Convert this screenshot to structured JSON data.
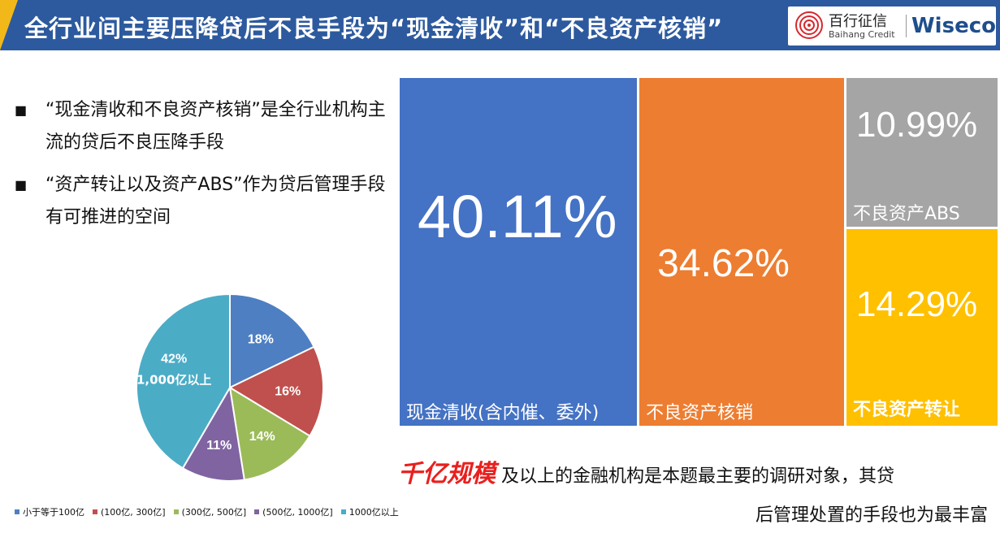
{
  "header": {
    "title": "全行业间主要压降贷后不良手段为“现金清收”和“不良资产核销”",
    "logo_cn": "百行征信",
    "logo_en": "Baihang Credit",
    "logo_brand": "Wiseco",
    "bg_color": "#2d5a9e"
  },
  "bullets": [
    {
      "icon": "■",
      "text": "“现金清收和不良资产核销”是全行业机构主流的贷后不良压降手段"
    },
    {
      "icon": "■",
      "text": "“资产转让以及资产ABS”作为贷后管理手段有可推进的空间"
    }
  ],
  "bottom_text": {
    "highlight": "千亿规模",
    "line1": "及以上的金融机构是本题最主要的调研对象，其贷",
    "line2": "后管理处置的手段也为最丰富"
  },
  "chart_data": [
    {
      "type": "pie",
      "categories": [
        "小于等于100亿",
        "(100亿, 300亿]",
        "(300亿, 500亿]",
        "(500亿, 1000亿]",
        "1000亿以上"
      ],
      "values": [
        18,
        16,
        14,
        11,
        42
      ],
      "data_labels": [
        "18%",
        "16%",
        "14%",
        "11%",
        "42%"
      ],
      "slice_annotation": "1,000亿以上",
      "colors": [
        "#4e7fc2",
        "#c0504d",
        "#9bbb59",
        "#8064a2",
        "#4bacc6"
      ],
      "legend_position": "bottom"
    },
    {
      "type": "treemap",
      "categories": [
        "现金清收(含内催、委外)",
        "不良资产核销",
        "不良资产ABS",
        "不良资产转让"
      ],
      "values": [
        40.11,
        34.62,
        10.99,
        14.29
      ],
      "data_labels": [
        "40.11%",
        "34.62%",
        "10.99%",
        "14.29%"
      ],
      "colors": [
        "#4472c4",
        "#ed7d31",
        "#a5a5a5",
        "#ffc000"
      ]
    }
  ]
}
